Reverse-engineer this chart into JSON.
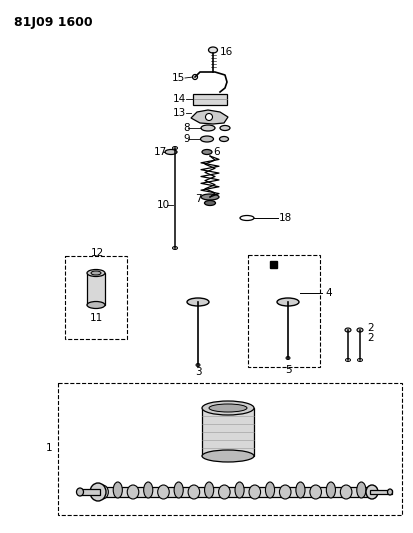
{
  "title": "81J09 1600",
  "bg_color": "#ffffff",
  "fig_width": 4.13,
  "fig_height": 5.33,
  "dpi": 100
}
